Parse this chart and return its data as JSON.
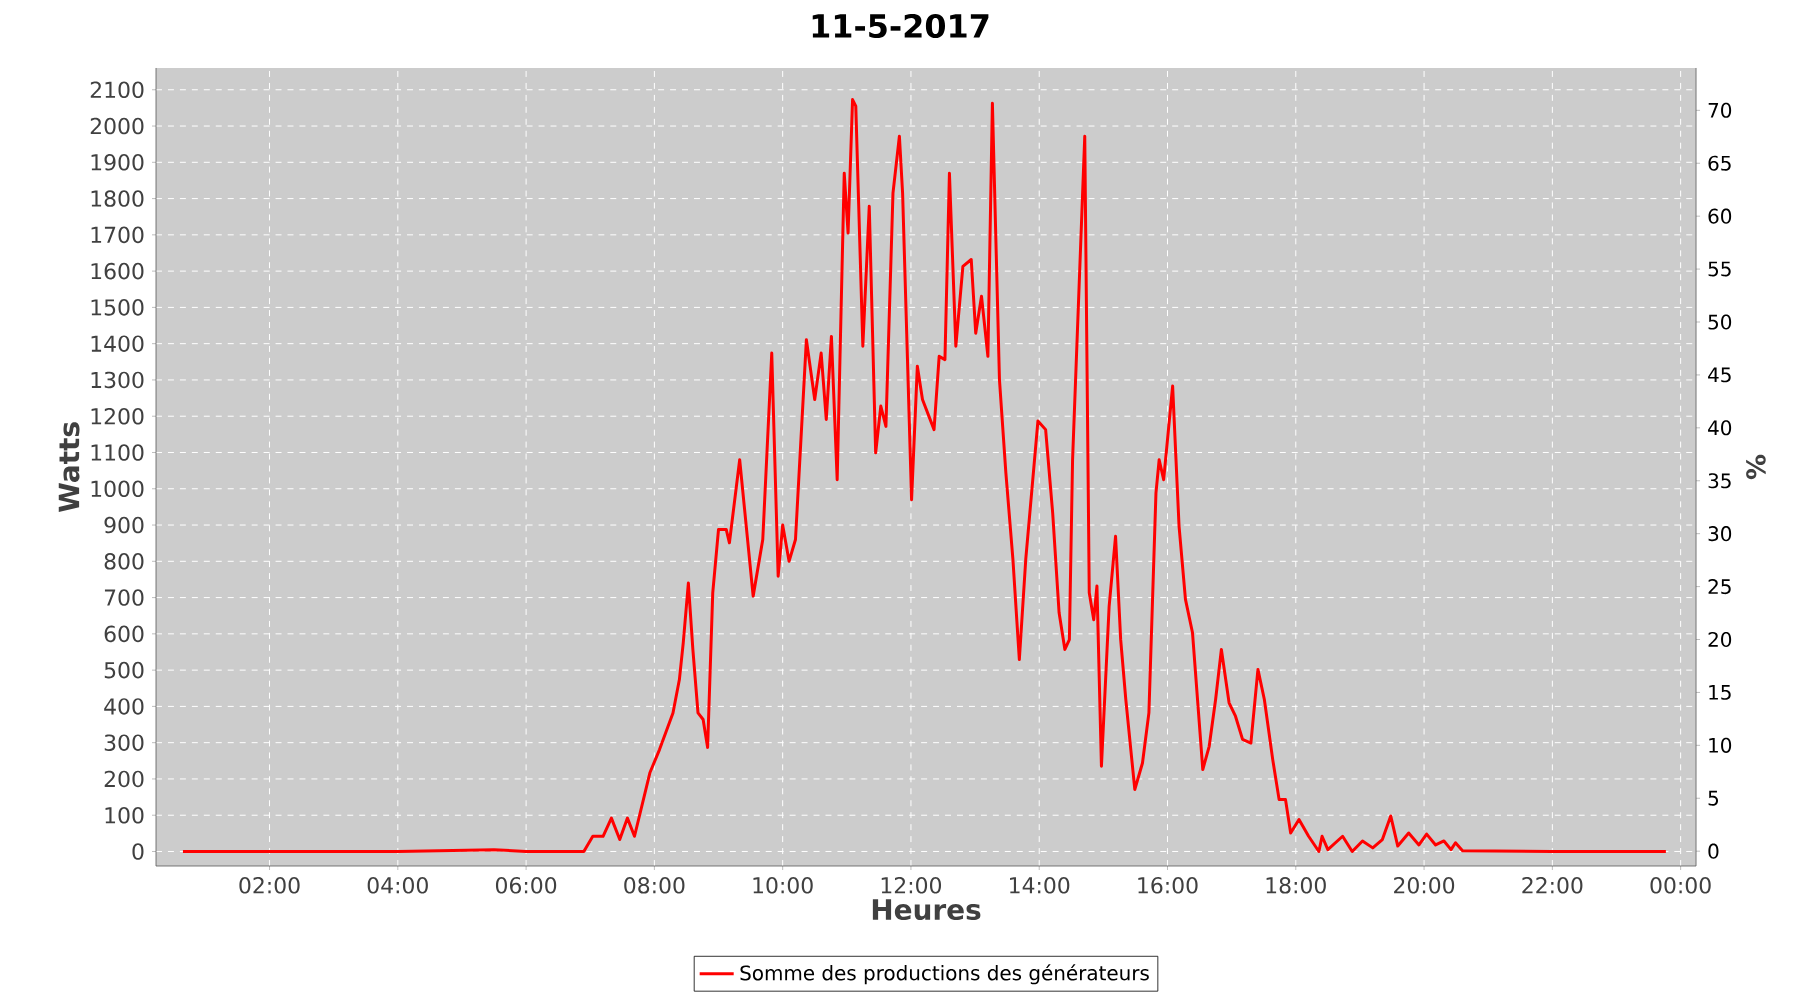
{
  "chart_data": {
    "type": "line",
    "title": "11-5-2017",
    "xlabel": "Heures",
    "ylabel": "Watts",
    "y2label": "%",
    "xlim": [
      0.23,
      24.24
    ],
    "ylim": [
      -40,
      2160
    ],
    "y2lim": [
      -1.4,
      74
    ],
    "xticks": [
      {
        "value": 2,
        "label": "02:00"
      },
      {
        "value": 4,
        "label": "04:00"
      },
      {
        "value": 6,
        "label": "06:00"
      },
      {
        "value": 8,
        "label": "08:00"
      },
      {
        "value": 10,
        "label": "10:00"
      },
      {
        "value": 12,
        "label": "12:00"
      },
      {
        "value": 14,
        "label": "14:00"
      },
      {
        "value": 16,
        "label": "16:00"
      },
      {
        "value": 18,
        "label": "18:00"
      },
      {
        "value": 20,
        "label": "20:00"
      },
      {
        "value": 22,
        "label": "22:00"
      },
      {
        "value": 24,
        "label": "00:00"
      }
    ],
    "yticks": [
      0,
      100,
      200,
      300,
      400,
      500,
      600,
      700,
      800,
      900,
      1000,
      1100,
      1200,
      1300,
      1400,
      1500,
      1600,
      1700,
      1800,
      1900,
      2000,
      2100
    ],
    "y2ticks": [
      0,
      5,
      10,
      15,
      20,
      25,
      30,
      35,
      40,
      45,
      50,
      55,
      60,
      65,
      70
    ],
    "grid": true,
    "legend": "bottom",
    "marker": "none",
    "line_style": "solid",
    "series": [
      {
        "name": "Somme des productions des  générateurs",
        "color": "#ff0000",
        "x": [
          0.65,
          2,
          4,
          5.5,
          6,
          6.9,
          7.04,
          7.2,
          7.33,
          7.46,
          7.58,
          7.69,
          7.93,
          8.08,
          8.29,
          8.39,
          8.45,
          8.53,
          8.6,
          8.68,
          8.76,
          8.83,
          8.91,
          9.0,
          9.12,
          9.17,
          9.33,
          9.54,
          9.69,
          9.83,
          9.93,
          10.0,
          10.1,
          10.2,
          10.37,
          10.5,
          10.6,
          10.68,
          10.76,
          10.85,
          10.96,
          11.02,
          11.09,
          11.14,
          11.25,
          11.35,
          11.45,
          11.53,
          11.61,
          11.72,
          11.82,
          11.87,
          12.01,
          12.1,
          12.18,
          12.36,
          12.44,
          12.53,
          12.6,
          12.7,
          12.81,
          12.94,
          13.01,
          13.1,
          13.2,
          13.27,
          13.38,
          13.48,
          13.59,
          13.69,
          13.79,
          13.98,
          14.1,
          14.21,
          14.31,
          14.4,
          14.47,
          14.52,
          14.71,
          14.78,
          14.85,
          14.9,
          14.97,
          15.09,
          15.19,
          15.27,
          15.35,
          15.49,
          15.61,
          15.71,
          15.82,
          15.87,
          15.94,
          16.08,
          16.18,
          16.28,
          16.39,
          16.55,
          16.65,
          16.75,
          16.84,
          16.96,
          17.06,
          17.17,
          17.3,
          17.41,
          17.51,
          17.64,
          17.74,
          17.84,
          17.92,
          18.05,
          18.2,
          18.36,
          18.41,
          18.5,
          18.73,
          18.88,
          19.04,
          19.2,
          19.35,
          19.48,
          19.59,
          19.76,
          19.92,
          20.04,
          20.18,
          20.31,
          20.42,
          20.49,
          20.6,
          22,
          23.77
        ],
        "values": [
          0,
          0,
          0,
          5,
          0,
          0,
          42,
          42,
          92,
          33,
          92,
          42,
          217,
          281,
          382,
          474,
          575,
          740,
          557,
          382,
          364,
          287,
          713,
          888,
          888,
          851,
          1080,
          704,
          860,
          1374,
          759,
          900,
          800,
          860,
          1411,
          1246,
          1374,
          1191,
          1420,
          1025,
          1870,
          1705,
          2073,
          2055,
          1393,
          1779,
          1099,
          1228,
          1172,
          1815,
          1972,
          1815,
          970,
          1338,
          1246,
          1163,
          1365,
          1356,
          1870,
          1393,
          1613,
          1632,
          1429,
          1531,
          1365,
          2063,
          1301,
          1044,
          805,
          529,
          805,
          1187,
          1163,
          933,
          658,
          557,
          584,
          1080,
          1972,
          713,
          639,
          732,
          235,
          676,
          869,
          584,
          419,
          171,
          244,
          382,
          988,
          1080,
          1025,
          1283,
          897,
          695,
          603,
          226,
          290,
          419,
          557,
          410,
          373,
          309,
          299,
          502,
          419,
          254,
          143,
          143,
          51,
          88,
          42,
          0,
          42,
          5,
          42,
          0,
          29,
          10,
          33,
          98,
          15,
          51,
          18,
          48,
          18,
          29,
          5,
          24,
          2,
          0,
          0
        ]
      }
    ]
  }
}
